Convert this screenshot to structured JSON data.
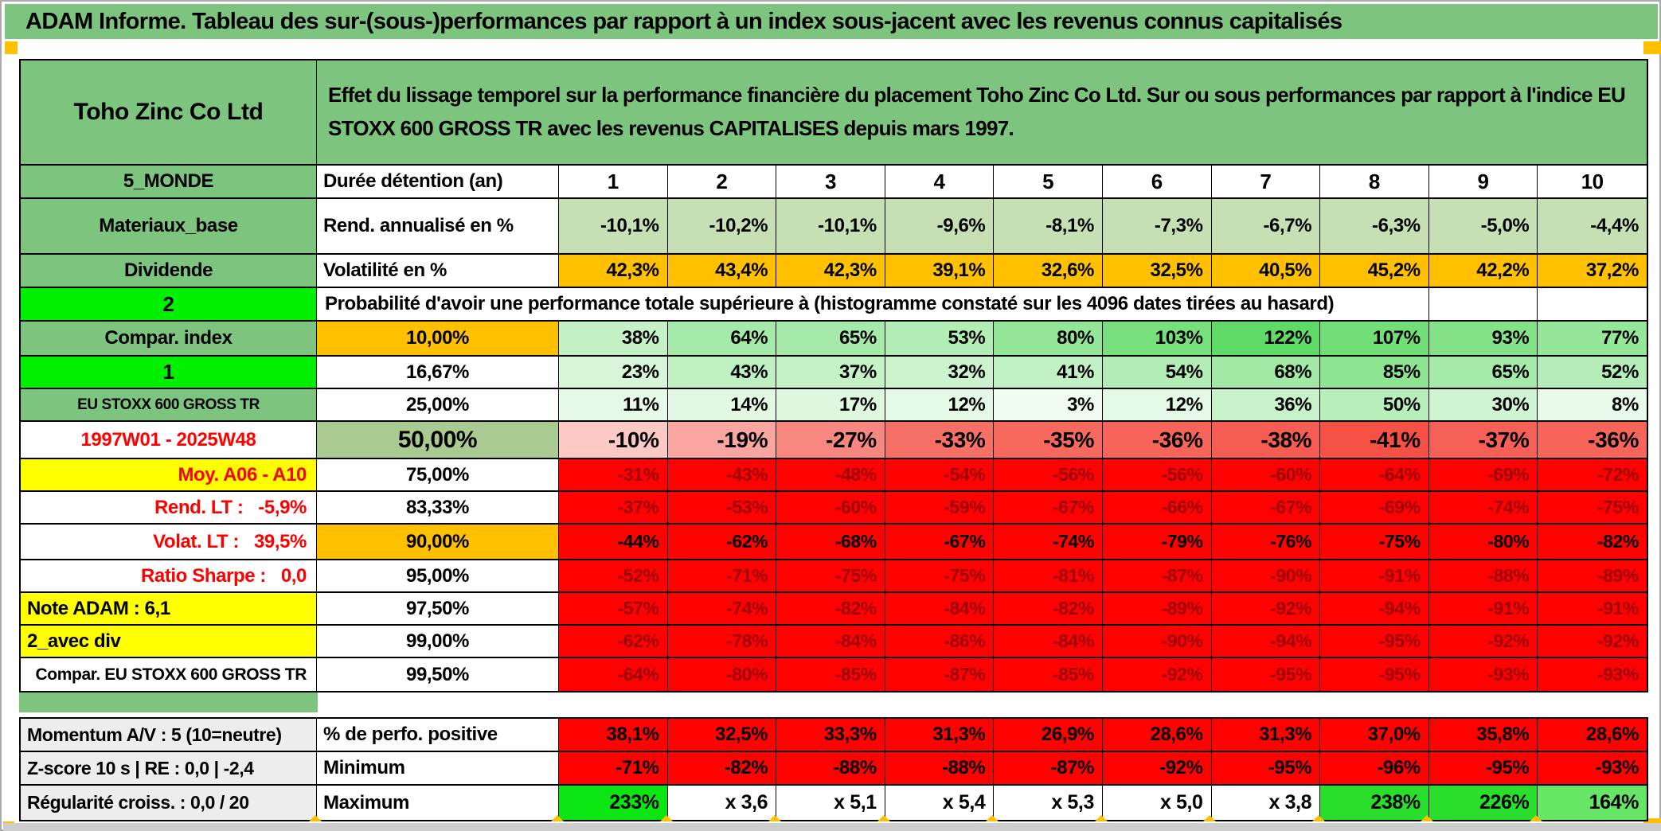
{
  "app": {
    "title": "ADAM Informe. Tableau des sur-(sous-)performances par rapport à un index sous-jacent avec les revenus connus capitalisés"
  },
  "header": {
    "security": "Toho Zinc Co Ltd",
    "description": "Effet du lissage temporel sur la performance financière du placement Toho Zinc Co Ltd. Sur ou sous performances par rapport à l'indice EU STOXX 600 GROSS TR avec les revenus CAPITALISES depuis mars 1997."
  },
  "colors": {
    "band_green": "#7DC57E",
    "bright_green": "#00F000",
    "light_green_row": "#C6E0B4",
    "sage_green": "#A9CA90",
    "orange": "#FFC000",
    "yellow": "#FFFF00",
    "solid_red": "#FE0101",
    "dark_red_text": "#9C0006",
    "max_green": "#0BE512",
    "max_green_mid": "#2ADF2B",
    "max_green_light": "#66E566",
    "gray_label": "#EDEDED"
  },
  "table": {
    "rows": [
      {
        "id": "duree",
        "kind": "colhead",
        "label": "5_MONDE",
        "label_bg": "green",
        "param": "Durée détention (an)",
        "param_align": "left",
        "values": [
          "1",
          "2",
          "3",
          "4",
          "5",
          "6",
          "7",
          "8",
          "9",
          "10"
        ]
      },
      {
        "id": "rend",
        "kind": "fill",
        "cell_bg": "#C6E0B4",
        "label": "Materiaux_base",
        "label_bg": "green",
        "param": "Rend. annualisé en %",
        "param_align": "left",
        "values": [
          "-10,1%",
          "-10,2%",
          "-10,1%",
          "-9,6%",
          "-8,1%",
          "-7,3%",
          "-6,7%",
          "-6,3%",
          "-5,0%",
          "-4,4%"
        ]
      },
      {
        "id": "volat",
        "kind": "fill",
        "cell_bg": "#FFC000",
        "label": "Dividende",
        "label_bg": "green",
        "param": "Volatilité en %",
        "param_align": "left",
        "values": [
          "42,3%",
          "43,4%",
          "42,3%",
          "39,1%",
          "32,6%",
          "32,5%",
          "40,5%",
          "45,2%",
          "42,2%",
          "37,2%"
        ]
      },
      {
        "id": "proba",
        "kind": "merged",
        "label": "2",
        "label_bg": "bright",
        "label_flag": true,
        "merged_text": "Probabilité d'avoir une performance totale supérieure à (histogramme constaté sur les 4096 dates tirées au hasard)"
      },
      {
        "id": "p10",
        "kind": "greenscale",
        "label": "Compar. index",
        "label_bg": "green",
        "param": "10,00%",
        "param_bg": "#FFC000",
        "values": [
          "38%",
          "64%",
          "65%",
          "53%",
          "80%",
          "103%",
          "122%",
          "107%",
          "93%",
          "77%"
        ]
      },
      {
        "id": "p1667",
        "kind": "greenscale",
        "label": "1",
        "label_bg": "bright",
        "label_flag": true,
        "param": "16,67%",
        "values": [
          "23%",
          "43%",
          "37%",
          "32%",
          "41%",
          "54%",
          "68%",
          "85%",
          "65%",
          "52%"
        ]
      },
      {
        "id": "p25",
        "kind": "greenscale",
        "label": "EU STOXX 600 GROSS TR",
        "label_bg": "green",
        "param": "25,00%",
        "values": [
          "11%",
          "14%",
          "17%",
          "12%",
          "3%",
          "12%",
          "36%",
          "50%",
          "30%",
          "8%"
        ]
      },
      {
        "id": "p50",
        "kind": "redscale",
        "label": "1997W01 - 2025W48",
        "label_color": "red",
        "param": "50,00%",
        "param_bg": "#A9CA90",
        "param_big": true,
        "values": [
          "-10%",
          "-19%",
          "-27%",
          "-33%",
          "-35%",
          "-36%",
          "-38%",
          "-41%",
          "-37%",
          "-36%"
        ]
      },
      {
        "id": "p75",
        "kind": "solidred",
        "label": "Moy. A06 - A10",
        "label_bg": "yellow",
        "label_color": "red",
        "label_align": "right",
        "param": "75,00%",
        "values": [
          "-31%",
          "-43%",
          "-48%",
          "-54%",
          "-56%",
          "-56%",
          "-60%",
          "-64%",
          "-69%",
          "-72%"
        ]
      },
      {
        "id": "p8333",
        "kind": "solidred",
        "label": "Rend. LT :   -5,9%",
        "label_color": "red",
        "label_align": "right",
        "param": "83,33%",
        "values": [
          "-37%",
          "-53%",
          "-60%",
          "-59%",
          "-67%",
          "-66%",
          "-67%",
          "-69%",
          "-74%",
          "-75%"
        ]
      },
      {
        "id": "p90",
        "kind": "solidred",
        "bold": true,
        "label": "Volat. LT :   39,5%",
        "label_color": "red",
        "label_align": "right",
        "param": "90,00%",
        "param_bg": "#FFC000",
        "values": [
          "-44%",
          "-62%",
          "-68%",
          "-67%",
          "-74%",
          "-79%",
          "-76%",
          "-75%",
          "-80%",
          "-82%"
        ]
      },
      {
        "id": "p95",
        "kind": "solidred",
        "label": "Ratio Sharpe :   0,0",
        "label_color": "red",
        "label_align": "right",
        "param": "95,00%",
        "values": [
          "-52%",
          "-71%",
          "-75%",
          "-75%",
          "-81%",
          "-87%",
          "-90%",
          "-91%",
          "-88%",
          "-89%"
        ]
      },
      {
        "id": "p975",
        "kind": "solidred",
        "label": "Note ADAM : 6,1",
        "label_bg": "yellow",
        "label_align": "left",
        "param": "97,50%",
        "values": [
          "-57%",
          "-74%",
          "-82%",
          "-84%",
          "-82%",
          "-89%",
          "-92%",
          "-94%",
          "-91%",
          "-91%"
        ]
      },
      {
        "id": "p99",
        "kind": "solidred",
        "label": "2_avec div",
        "label_bg": "yellow",
        "label_align": "left",
        "param": "99,00%",
        "values": [
          "-62%",
          "-78%",
          "-84%",
          "-86%",
          "-84%",
          "-90%",
          "-94%",
          "-95%",
          "-92%",
          "-92%"
        ]
      },
      {
        "id": "p995",
        "kind": "solidred",
        "label": "Compar. EU STOXX 600 GROSS TR",
        "label_align": "right",
        "param": "99,50%",
        "values": [
          "-64%",
          "-80%",
          "-85%",
          "-87%",
          "-85%",
          "-92%",
          "-95%",
          "-95%",
          "-93%",
          "-93%"
        ]
      },
      {
        "id": "perfpos",
        "section": "bottom",
        "kind": "fill",
        "cell_bg": "#FE0101",
        "bold": true,
        "label": "Momentum A/V : 5 (10=neutre)",
        "label_bg": "gray",
        "label_align": "left",
        "param": "% de perfo. positive",
        "param_align": "left",
        "values": [
          "38,1%",
          "32,5%",
          "33,3%",
          "31,3%",
          "26,9%",
          "28,6%",
          "31,3%",
          "37,0%",
          "35,8%",
          "28,6%"
        ]
      },
      {
        "id": "minimum",
        "section": "bottom",
        "kind": "fill",
        "cell_bg": "#FE0101",
        "bold": true,
        "label": "Z-score 10 s | RE : 0,0 | -2,4",
        "label_bg": "gray",
        "label_align": "left",
        "param": "Minimum",
        "param_align": "left",
        "values": [
          "-71%",
          "-82%",
          "-88%",
          "-88%",
          "-87%",
          "-92%",
          "-95%",
          "-96%",
          "-95%",
          "-93%"
        ]
      },
      {
        "id": "maximum",
        "section": "bottom",
        "kind": "max",
        "bold": true,
        "cell_bgs": [
          "#0BE512",
          null,
          null,
          null,
          null,
          null,
          null,
          "#2ADF2B",
          "#2ADF2B",
          "#66E566"
        ],
        "label": "Régularité croiss. : 0,0 / 20",
        "label_bg": "gray",
        "label_align": "left",
        "param": "Maximum",
        "param_align": "left",
        "values": [
          "233%",
          "x 3,6",
          "x 5,1",
          "x 5,4",
          "x 5,3",
          "x 5,0",
          "x 3,8",
          "238%",
          "226%",
          "164%"
        ]
      }
    ]
  }
}
